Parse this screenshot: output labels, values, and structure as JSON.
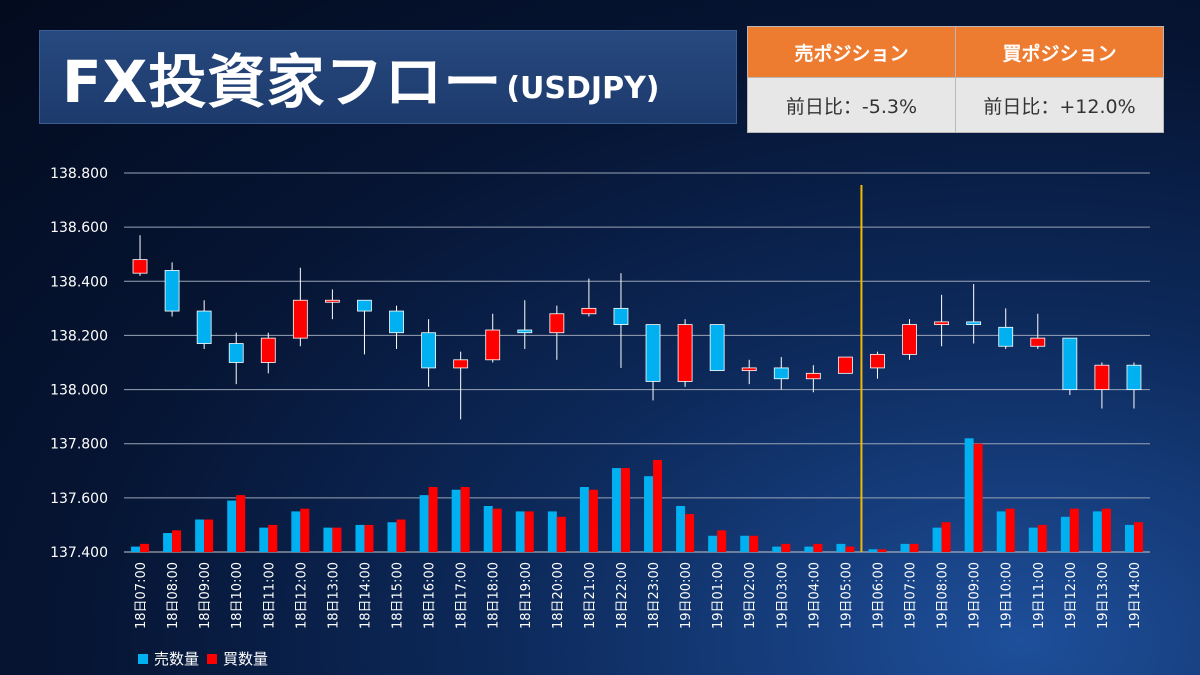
{
  "title": {
    "main": "FX投資家フロー",
    "sub": "(USDJPY)"
  },
  "positions": {
    "sell": {
      "label": "売ポジション",
      "change": "前日比：-5.3%"
    },
    "buy": {
      "label": "買ポジション",
      "change": "前日比：+12.0%"
    }
  },
  "legend": {
    "sell": "売数量",
    "buy": "買数量"
  },
  "colors": {
    "sell": "#00b0f0",
    "buy": "#ff0000",
    "divider": "#f5b800",
    "header": "#ee7c30"
  },
  "chart_data": {
    "type": "candlestick+bar",
    "ylim": [
      137.4,
      138.8
    ],
    "yticks": [
      "138.800",
      "138.600",
      "138.400",
      "138.200",
      "138.000",
      "137.800",
      "137.600",
      "137.400"
    ],
    "divider_after": "19日05:00",
    "categories": [
      "18日07:00",
      "18日08:00",
      "18日09:00",
      "18日10:00",
      "18日11:00",
      "18日12:00",
      "18日13:00",
      "18日14:00",
      "18日15:00",
      "18日16:00",
      "18日17:00",
      "18日18:00",
      "18日19:00",
      "18日20:00",
      "18日21:00",
      "18日22:00",
      "18日23:00",
      "19日00:00",
      "19日01:00",
      "19日02:00",
      "19日03:00",
      "19日04:00",
      "19日05:00",
      "19日06:00",
      "19日07:00",
      "19日08:00",
      "19日09:00",
      "19日10:00",
      "19日11:00",
      "19日12:00",
      "19日13:00",
      "19日14:00"
    ],
    "candles": [
      {
        "o": 138.43,
        "c": 138.48,
        "h": 138.57,
        "l": 138.42
      },
      {
        "o": 138.44,
        "c": 138.29,
        "h": 138.47,
        "l": 138.27
      },
      {
        "o": 138.29,
        "c": 138.17,
        "h": 138.33,
        "l": 138.15
      },
      {
        "o": 138.17,
        "c": 138.1,
        "h": 138.21,
        "l": 138.02
      },
      {
        "o": 138.1,
        "c": 138.19,
        "h": 138.21,
        "l": 138.06
      },
      {
        "o": 138.19,
        "c": 138.33,
        "h": 138.45,
        "l": 138.16
      },
      {
        "o": 138.33,
        "c": 138.33,
        "h": 138.37,
        "l": 138.26
      },
      {
        "o": 138.33,
        "c": 138.29,
        "h": 138.33,
        "l": 138.13
      },
      {
        "o": 138.29,
        "c": 138.21,
        "h": 138.31,
        "l": 138.15
      },
      {
        "o": 138.21,
        "c": 138.08,
        "h": 138.26,
        "l": 138.01
      },
      {
        "o": 138.08,
        "c": 138.11,
        "h": 138.14,
        "l": 137.89
      },
      {
        "o": 138.11,
        "c": 138.22,
        "h": 138.28,
        "l": 138.1
      },
      {
        "o": 138.22,
        "c": 138.21,
        "h": 138.33,
        "l": 138.15
      },
      {
        "o": 138.21,
        "c": 138.28,
        "h": 138.31,
        "l": 138.11
      },
      {
        "o": 138.28,
        "c": 138.3,
        "h": 138.41,
        "l": 138.27
      },
      {
        "o": 138.3,
        "c": 138.24,
        "h": 138.43,
        "l": 138.08
      },
      {
        "o": 138.24,
        "c": 138.03,
        "h": 138.24,
        "l": 137.96
      },
      {
        "o": 138.03,
        "c": 138.24,
        "h": 138.26,
        "l": 138.01
      },
      {
        "o": 138.24,
        "c": 138.07,
        "h": 138.24,
        "l": 138.07
      },
      {
        "o": 138.07,
        "c": 138.08,
        "h": 138.11,
        "l": 138.02
      },
      {
        "o": 138.08,
        "c": 138.04,
        "h": 138.12,
        "l": 138.0
      },
      {
        "o": 138.04,
        "c": 138.06,
        "h": 138.09,
        "l": 137.99
      },
      {
        "o": 138.06,
        "c": 138.12,
        "h": 138.12,
        "l": 138.06
      },
      {
        "o": 138.08,
        "c": 138.13,
        "h": 138.14,
        "l": 138.04
      },
      {
        "o": 138.13,
        "c": 138.24,
        "h": 138.26,
        "l": 138.11
      },
      {
        "o": 138.24,
        "c": 138.25,
        "h": 138.35,
        "l": 138.16
      },
      {
        "o": 138.25,
        "c": 138.24,
        "h": 138.39,
        "l": 138.17
      },
      {
        "o": 138.23,
        "c": 138.16,
        "h": 138.3,
        "l": 138.15
      },
      {
        "o": 138.16,
        "c": 138.19,
        "h": 138.28,
        "l": 138.15
      },
      {
        "o": 138.19,
        "c": 138.0,
        "h": 138.19,
        "l": 137.98
      },
      {
        "o": 138.0,
        "c": 138.09,
        "h": 138.1,
        "l": 137.93
      },
      {
        "o": 138.09,
        "c": 138.0,
        "h": 138.1,
        "l": 137.93
      }
    ],
    "series": [
      {
        "name": "売数量",
        "values": [
          137.42,
          137.47,
          137.52,
          137.59,
          137.49,
          137.55,
          137.49,
          137.5,
          137.51,
          137.61,
          137.63,
          137.57,
          137.55,
          137.55,
          137.64,
          137.71,
          137.68,
          137.57,
          137.46,
          137.46,
          137.42,
          137.42,
          137.43,
          137.41,
          137.43,
          137.49,
          137.82,
          137.55,
          137.49,
          137.53,
          137.55,
          137.5
        ]
      },
      {
        "name": "買数量",
        "values": [
          137.43,
          137.48,
          137.52,
          137.61,
          137.5,
          137.56,
          137.49,
          137.5,
          137.52,
          137.64,
          137.64,
          137.56,
          137.55,
          137.53,
          137.63,
          137.71,
          137.74,
          137.54,
          137.48,
          137.46,
          137.43,
          137.43,
          137.42,
          137.41,
          137.43,
          137.51,
          137.8,
          137.56,
          137.5,
          137.56,
          137.56,
          137.51
        ]
      }
    ]
  }
}
